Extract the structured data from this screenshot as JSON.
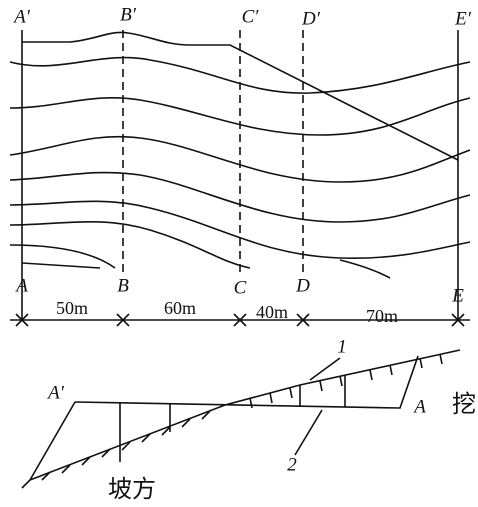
{
  "plan": {
    "top_labels": [
      "A′",
      "B′",
      "C′",
      "D′",
      "E′"
    ],
    "bottom_labels": [
      "A",
      "B",
      "C",
      "D",
      "E"
    ],
    "dimensions": [
      "50m",
      "60m",
      "40m",
      "70m"
    ]
  },
  "profile": {
    "left_label": "A′",
    "right_label": "A",
    "callouts": [
      "1",
      "2"
    ],
    "handwritten": [
      "坡方",
      "挖"
    ]
  }
}
